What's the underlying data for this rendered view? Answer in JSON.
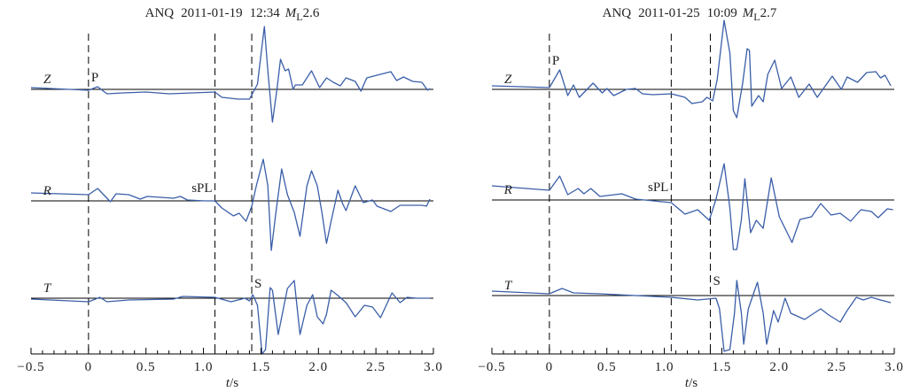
{
  "chart_data": [
    {
      "type": "line",
      "title": {
        "station": "ANQ",
        "date": "2011-01-19",
        "time": "12:34",
        "mag_symbol": "M",
        "mag_sub": "L",
        "mag_value": "2.6"
      },
      "xlabel": {
        "var": "t",
        "unit": "/s"
      },
      "xlim": [
        -0.5,
        3.0
      ],
      "xticks": [
        "−0.5",
        "0",
        "0.5",
        "1.0",
        "1.5",
        "2.0",
        "2.5",
        "3.0"
      ],
      "xtick_values": [
        -0.5,
        0,
        0.5,
        1.0,
        1.5,
        2.0,
        2.5,
        3.0
      ],
      "minor_tick_step": 0.1,
      "amplitude_unit": "relative",
      "markers": [
        {
          "t": 0,
          "label": "P",
          "trace": "Z",
          "side": "right"
        },
        {
          "t": 1.1,
          "label": "sPL",
          "trace": "R",
          "side": "left"
        },
        {
          "t": 1.42,
          "label": "S",
          "trace": "T",
          "side": "right"
        }
      ],
      "series": [
        {
          "name": "Z",
          "points": [
            [
              -0.5,
              2
            ],
            [
              0,
              -1
            ],
            [
              0.08,
              3
            ],
            [
              0.16,
              -5
            ],
            [
              0.3,
              -4
            ],
            [
              0.5,
              -3
            ],
            [
              0.7,
              -5
            ],
            [
              0.9,
              -4
            ],
            [
              1.1,
              -3
            ],
            [
              1.16,
              -9
            ],
            [
              1.3,
              -11
            ],
            [
              1.4,
              -11
            ],
            [
              1.43,
              -4
            ],
            [
              1.47,
              6
            ],
            [
              1.53,
              71
            ],
            [
              1.56,
              21
            ],
            [
              1.6,
              -37
            ],
            [
              1.64,
              1
            ],
            [
              1.67,
              34
            ],
            [
              1.71,
              21
            ],
            [
              1.74,
              23
            ],
            [
              1.78,
              0
            ],
            [
              1.8,
              5
            ],
            [
              1.86,
              5
            ],
            [
              1.94,
              21
            ],
            [
              2.01,
              2
            ],
            [
              2.07,
              13
            ],
            [
              2.13,
              8
            ],
            [
              2.19,
              4
            ],
            [
              2.24,
              13
            ],
            [
              2.32,
              9
            ],
            [
              2.37,
              -2
            ],
            [
              2.42,
              13
            ],
            [
              2.51,
              16
            ],
            [
              2.63,
              20
            ],
            [
              2.68,
              10
            ],
            [
              2.74,
              14
            ],
            [
              2.82,
              9
            ],
            [
              2.9,
              8
            ],
            [
              2.95,
              -1
            ],
            [
              2.97,
              1
            ]
          ]
        },
        {
          "name": "R",
          "points": [
            [
              -0.5,
              9
            ],
            [
              0,
              7
            ],
            [
              0.08,
              14
            ],
            [
              0.19,
              -1
            ],
            [
              0.24,
              8
            ],
            [
              0.35,
              7
            ],
            [
              0.45,
              2
            ],
            [
              0.51,
              5
            ],
            [
              0.74,
              3
            ],
            [
              0.8,
              5
            ],
            [
              0.86,
              1
            ],
            [
              1.01,
              0
            ],
            [
              1.1,
              0
            ],
            [
              1.16,
              -8
            ],
            [
              1.26,
              -17
            ],
            [
              1.31,
              -14
            ],
            [
              1.37,
              -23
            ],
            [
              1.42,
              -6
            ],
            [
              1.46,
              17
            ],
            [
              1.52,
              47
            ],
            [
              1.56,
              17
            ],
            [
              1.59,
              -56
            ],
            [
              1.63,
              -13
            ],
            [
              1.68,
              36
            ],
            [
              1.73,
              7
            ],
            [
              1.79,
              -13
            ],
            [
              1.84,
              -40
            ],
            [
              1.9,
              17
            ],
            [
              1.94,
              34
            ],
            [
              1.99,
              17
            ],
            [
              2.03,
              -13
            ],
            [
              2.07,
              -48
            ],
            [
              2.11,
              -23
            ],
            [
              2.17,
              12
            ],
            [
              2.21,
              -3
            ],
            [
              2.24,
              -11
            ],
            [
              2.32,
              17
            ],
            [
              2.39,
              -2
            ],
            [
              2.47,
              1
            ],
            [
              2.51,
              -6
            ],
            [
              2.63,
              -12
            ],
            [
              2.71,
              -5
            ],
            [
              2.9,
              -5
            ],
            [
              2.94,
              -6
            ],
            [
              2.97,
              2
            ]
          ]
        },
        {
          "name": "T",
          "points": [
            [
              -0.5,
              -1
            ],
            [
              0,
              -4
            ],
            [
              0.1,
              1
            ],
            [
              0.16,
              -4
            ],
            [
              0.35,
              -2
            ],
            [
              0.74,
              -1
            ],
            [
              0.82,
              2
            ],
            [
              1.1,
              1
            ],
            [
              1.24,
              -4
            ],
            [
              1.36,
              0
            ],
            [
              1.4,
              -3
            ],
            [
              1.43,
              4
            ],
            [
              1.47,
              -8
            ],
            [
              1.51,
              -63
            ],
            [
              1.54,
              -58
            ],
            [
              1.58,
              12
            ],
            [
              1.6,
              9
            ],
            [
              1.65,
              -41
            ],
            [
              1.69,
              -15
            ],
            [
              1.73,
              11
            ],
            [
              1.79,
              20
            ],
            [
              1.84,
              -41
            ],
            [
              1.9,
              -8
            ],
            [
              1.95,
              4
            ],
            [
              1.99,
              -21
            ],
            [
              2.04,
              -29
            ],
            [
              2.07,
              -18
            ],
            [
              2.11,
              9
            ],
            [
              2.17,
              3
            ],
            [
              2.24,
              -5
            ],
            [
              2.32,
              -21
            ],
            [
              2.4,
              -8
            ],
            [
              2.47,
              -10
            ],
            [
              2.54,
              -22
            ],
            [
              2.59,
              -8
            ],
            [
              2.64,
              6
            ],
            [
              2.71,
              -5
            ],
            [
              2.77,
              1
            ],
            [
              2.86,
              0
            ],
            [
              2.97,
              0
            ]
          ]
        }
      ]
    },
    {
      "type": "line",
      "title": {
        "station": "ANQ",
        "date": "2011-01-25",
        "time": "10:09",
        "mag_symbol": "M",
        "mag_sub": "L",
        "mag_value": "2.7"
      },
      "xlabel": {
        "var": "t",
        "unit": "/s"
      },
      "xlim": [
        -0.5,
        3.0
      ],
      "xticks": [
        "−0.5",
        "0",
        "0.5",
        "1.0",
        "1.5",
        "2.0",
        "2.5",
        "3.0"
      ],
      "xtick_values": [
        -0.5,
        0,
        0.5,
        1.0,
        1.5,
        2.0,
        2.5,
        3.0
      ],
      "minor_tick_step": 0.1,
      "amplitude_unit": "relative",
      "markers": [
        {
          "t": 0,
          "label": "P",
          "trace": "Z",
          "side": "right"
        },
        {
          "t": 1.06,
          "label": "sPL",
          "trace": "R",
          "side": "left"
        },
        {
          "t": 1.4,
          "label": "S",
          "trace": "T",
          "side": "right"
        }
      ],
      "series": [
        {
          "name": "Z",
          "points": [
            [
              -0.5,
              4
            ],
            [
              0,
              2
            ],
            [
              0.09,
              22
            ],
            [
              0.16,
              -7
            ],
            [
              0.21,
              5
            ],
            [
              0.26,
              -9
            ],
            [
              0.38,
              7
            ],
            [
              0.46,
              -4
            ],
            [
              0.5,
              1
            ],
            [
              0.56,
              -7
            ],
            [
              0.67,
              0
            ],
            [
              0.75,
              1
            ],
            [
              0.81,
              -5
            ],
            [
              0.9,
              -6
            ],
            [
              1.06,
              -5
            ],
            [
              1.18,
              -9
            ],
            [
              1.24,
              -16
            ],
            [
              1.33,
              -14
            ],
            [
              1.37,
              -9
            ],
            [
              1.42,
              -13
            ],
            [
              1.46,
              11
            ],
            [
              1.52,
              78
            ],
            [
              1.57,
              41
            ],
            [
              1.6,
              -24
            ],
            [
              1.63,
              -32
            ],
            [
              1.68,
              6
            ],
            [
              1.72,
              46
            ],
            [
              1.74,
              44
            ],
            [
              1.76,
              -19
            ],
            [
              1.82,
              -7
            ],
            [
              1.86,
              -14
            ],
            [
              1.9,
              17
            ],
            [
              1.96,
              33
            ],
            [
              2.02,
              1
            ],
            [
              2.1,
              14
            ],
            [
              2.17,
              -9
            ],
            [
              2.26,
              6
            ],
            [
              2.33,
              -9
            ],
            [
              2.46,
              15
            ],
            [
              2.54,
              0
            ],
            [
              2.59,
              14
            ],
            [
              2.68,
              8
            ],
            [
              2.76,
              19
            ],
            [
              2.84,
              20
            ],
            [
              2.88,
              13
            ],
            [
              2.92,
              16
            ],
            [
              2.97,
              4
            ]
          ]
        },
        {
          "name": "R",
          "points": [
            [
              -0.5,
              16
            ],
            [
              0,
              11
            ],
            [
              0.09,
              27
            ],
            [
              0.16,
              6
            ],
            [
              0.25,
              13
            ],
            [
              0.3,
              7
            ],
            [
              0.36,
              13
            ],
            [
              0.44,
              4
            ],
            [
              0.63,
              7
            ],
            [
              0.75,
              1
            ],
            [
              1.06,
              -3
            ],
            [
              1.18,
              -16
            ],
            [
              1.29,
              -11
            ],
            [
              1.39,
              -23
            ],
            [
              1.45,
              1
            ],
            [
              1.52,
              41
            ],
            [
              1.57,
              -9
            ],
            [
              1.6,
              -56
            ],
            [
              1.63,
              -56
            ],
            [
              1.67,
              -22
            ],
            [
              1.7,
              24
            ],
            [
              1.75,
              -37
            ],
            [
              1.8,
              -23
            ],
            [
              1.86,
              -32
            ],
            [
              1.93,
              25
            ],
            [
              2.0,
              -19
            ],
            [
              2.11,
              -48
            ],
            [
              2.18,
              -22
            ],
            [
              2.28,
              -19
            ],
            [
              2.36,
              -4
            ],
            [
              2.45,
              -17
            ],
            [
              2.53,
              -15
            ],
            [
              2.62,
              -24
            ],
            [
              2.71,
              -11
            ],
            [
              2.8,
              -13
            ],
            [
              2.86,
              -20
            ],
            [
              2.94,
              -10
            ],
            [
              2.99,
              -11
            ]
          ]
        },
        {
          "name": "T",
          "points": [
            [
              -0.5,
              5
            ],
            [
              0,
              2
            ],
            [
              0.11,
              8
            ],
            [
              0.21,
              3
            ],
            [
              0.44,
              2
            ],
            [
              0.75,
              0
            ],
            [
              1.06,
              -2
            ],
            [
              1.29,
              -5
            ],
            [
              1.45,
              -3
            ],
            [
              1.48,
              -15
            ],
            [
              1.52,
              -63
            ],
            [
              1.57,
              -61
            ],
            [
              1.61,
              -20
            ],
            [
              1.63,
              17
            ],
            [
              1.67,
              -20
            ],
            [
              1.69,
              -55
            ],
            [
              1.73,
              -15
            ],
            [
              1.81,
              15
            ],
            [
              1.86,
              -20
            ],
            [
              1.89,
              -55
            ],
            [
              1.95,
              -17
            ],
            [
              1.99,
              -30
            ],
            [
              2.05,
              -3
            ],
            [
              2.1,
              -20
            ],
            [
              2.22,
              -27
            ],
            [
              2.36,
              -15
            ],
            [
              2.43,
              -22
            ],
            [
              2.53,
              -30
            ],
            [
              2.59,
              -17
            ],
            [
              2.67,
              -2
            ],
            [
              2.73,
              -5
            ],
            [
              2.8,
              -2
            ],
            [
              2.88,
              -5
            ],
            [
              2.97,
              -8
            ]
          ]
        }
      ]
    }
  ]
}
